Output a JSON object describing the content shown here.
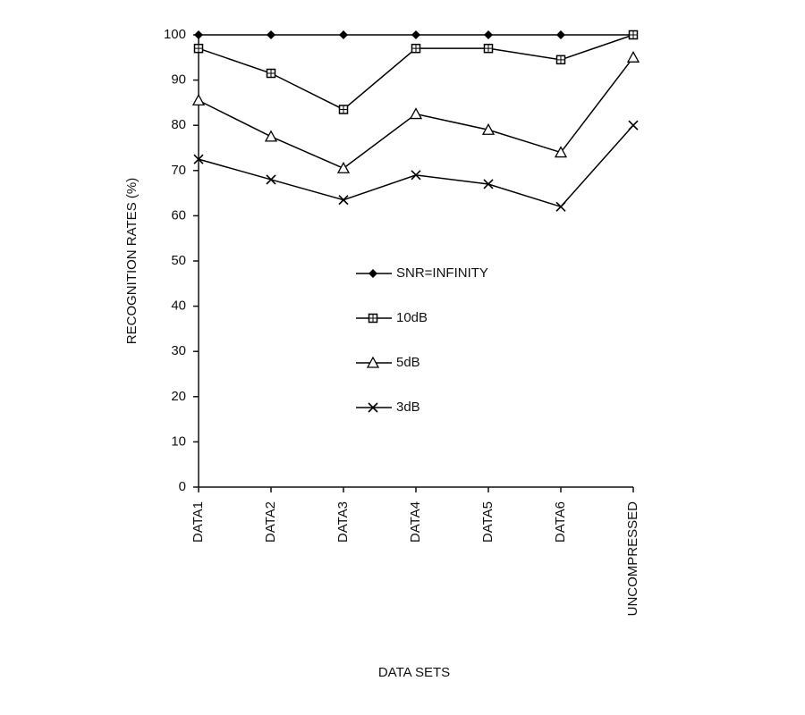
{
  "chart_data": {
    "type": "line",
    "x_label": "DATA SETS",
    "y_label": "RECOGNITION RATES (%)",
    "categories": [
      "DATA1",
      "DATA2",
      "DATA3",
      "DATA4",
      "DATA5",
      "DATA6",
      "UNCOMPRESSED"
    ],
    "series": [
      {
        "name": "SNR=INFINITY",
        "color": "#000000",
        "marker": "diamond",
        "values": [
          100,
          100,
          100,
          100,
          100,
          100,
          100
        ]
      },
      {
        "name": "10dB",
        "color": "#000000",
        "marker": "square",
        "values": [
          97,
          91.5,
          83.5,
          97,
          97,
          94.5,
          100
        ]
      },
      {
        "name": "5dB",
        "color": "#000000",
        "marker": "triangle",
        "values": [
          85.5,
          77.5,
          70.5,
          82.5,
          79,
          74,
          95
        ]
      },
      {
        "name": "3dB",
        "color": "#000000",
        "marker": "x",
        "values": [
          72.5,
          68,
          63.5,
          69,
          67,
          62,
          80
        ]
      }
    ],
    "ylim": [
      0,
      100
    ],
    "yticks": [
      0,
      10,
      20,
      30,
      40,
      50,
      60,
      70,
      80,
      90,
      100
    ],
    "grid": false
  }
}
